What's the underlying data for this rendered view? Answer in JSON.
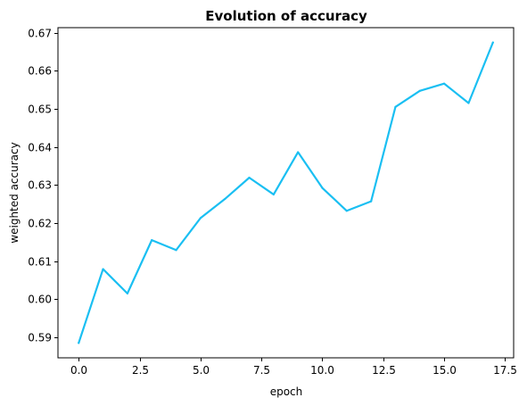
{
  "chart_data": {
    "type": "line",
    "title": "Evolution of accuracy",
    "xlabel": "epoch",
    "ylabel": "weighted accuracy",
    "x": [
      0,
      1,
      2,
      3,
      4,
      5,
      6,
      7,
      8,
      9,
      10,
      11,
      12,
      13,
      14,
      15,
      16,
      17
    ],
    "series": [
      {
        "color": "#1ABFF2",
        "values": [
          0.5885,
          0.6079,
          0.6015,
          0.6155,
          0.6129,
          0.6213,
          0.6263,
          0.6319,
          0.6275,
          0.6386,
          0.6292,
          0.6232,
          0.6257,
          0.6505,
          0.6547,
          0.6566,
          0.6515,
          0.6674
        ]
      }
    ],
    "xlim": [
      -0.85,
      17.85
    ],
    "ylim": [
      0.5846,
      0.6713
    ],
    "xticks": [
      0.0,
      2.5,
      5.0,
      7.5,
      10.0,
      12.5,
      15.0,
      17.5
    ],
    "xtick_labels": [
      "0.0",
      "2.5",
      "5.0",
      "7.5",
      "10.0",
      "12.5",
      "15.0",
      "17.5"
    ],
    "yticks": [
      0.59,
      0.6,
      0.61,
      0.62,
      0.63,
      0.64,
      0.65,
      0.66,
      0.67
    ],
    "ytick_labels": [
      "0.59",
      "0.60",
      "0.61",
      "0.62",
      "0.63",
      "0.64",
      "0.65",
      "0.66",
      "0.67"
    ],
    "grid": false,
    "legend": "none"
  }
}
